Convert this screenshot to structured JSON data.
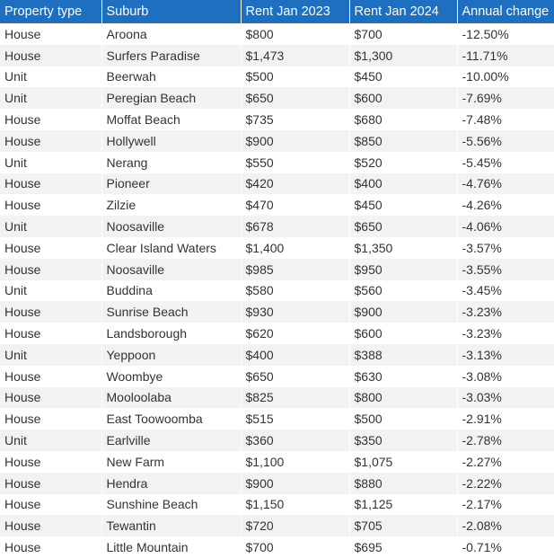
{
  "table": {
    "headers": [
      "Property type",
      "Suburb",
      "Rent Jan 2023",
      "Rent Jan 2024",
      "Annual change"
    ],
    "rows": [
      [
        "House",
        "Aroona",
        "$800",
        "$700",
        "-12.50%"
      ],
      [
        "House",
        "Surfers Paradise",
        "$1,473",
        "$1,300",
        "-11.71%"
      ],
      [
        "Unit",
        "Beerwah",
        "$500",
        "$450",
        "-10.00%"
      ],
      [
        "Unit",
        "Peregian Beach",
        "$650",
        "$600",
        "-7.69%"
      ],
      [
        "House",
        "Moffat Beach",
        "$735",
        "$680",
        "-7.48%"
      ],
      [
        "House",
        "Hollywell",
        "$900",
        "$850",
        "-5.56%"
      ],
      [
        "Unit",
        "Nerang",
        "$550",
        "$520",
        "-5.45%"
      ],
      [
        "House",
        "Pioneer",
        "$420",
        "$400",
        "-4.76%"
      ],
      [
        "House",
        "Zilzie",
        "$470",
        "$450",
        "-4.26%"
      ],
      [
        "Unit",
        "Noosaville",
        "$678",
        "$650",
        "-4.06%"
      ],
      [
        "House",
        "Clear Island Waters",
        "$1,400",
        "$1,350",
        "-3.57%"
      ],
      [
        "House",
        "Noosaville",
        "$985",
        "$950",
        "-3.55%"
      ],
      [
        "Unit",
        "Buddina",
        "$580",
        "$560",
        "-3.45%"
      ],
      [
        "House",
        "Sunrise Beach",
        "$930",
        "$900",
        "-3.23%"
      ],
      [
        "House",
        "Landsborough",
        "$620",
        "$600",
        "-3.23%"
      ],
      [
        "Unit",
        "Yeppoon",
        "$400",
        "$388",
        "-3.13%"
      ],
      [
        "House",
        "Woombye",
        "$650",
        "$630",
        "-3.08%"
      ],
      [
        "House",
        "Mooloolaba",
        "$825",
        "$800",
        "-3.03%"
      ],
      [
        "House",
        "East Toowoomba",
        "$515",
        "$500",
        "-2.91%"
      ],
      [
        "Unit",
        "Earlville",
        "$360",
        "$350",
        "-2.78%"
      ],
      [
        "House",
        "New Farm",
        "$1,100",
        "$1,075",
        "-2.27%"
      ],
      [
        "House",
        "Hendra",
        "$900",
        "$880",
        "-2.22%"
      ],
      [
        "House",
        "Sunshine Beach",
        "$1,150",
        "$1,125",
        "-2.17%"
      ],
      [
        "House",
        "Tewantin",
        "$720",
        "$705",
        "-2.08%"
      ],
      [
        "House",
        "Little Mountain",
        "$700",
        "$695",
        "-0.71%"
      ]
    ]
  },
  "colors": {
    "header_bg": "#1e6fbf",
    "header_text": "#ffffff",
    "row_alt_bg": "#f2f2f2",
    "cell_text": "#333333"
  }
}
